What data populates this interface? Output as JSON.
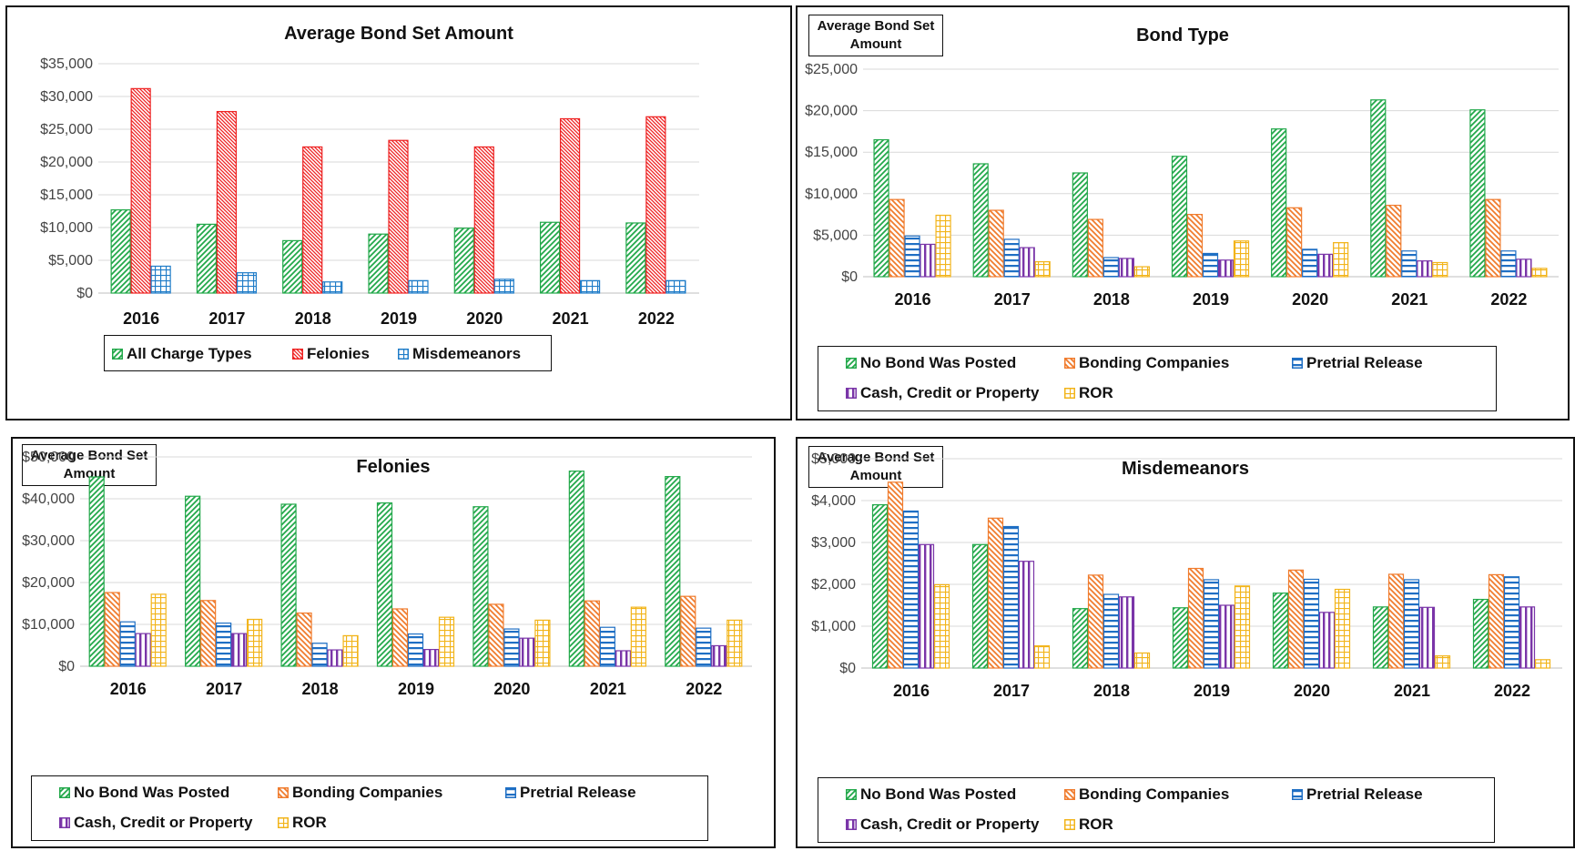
{
  "chart_data": [
    {
      "type": "bar",
      "title": "Average Bond Set Amount",
      "ylabel": "",
      "categories": [
        "2016",
        "2017",
        "2018",
        "2019",
        "2020",
        "2021",
        "2022"
      ],
      "ylim": [
        0,
        35000
      ],
      "yticks": [
        "$0",
        "$5,000",
        "$10,000",
        "$15,000",
        "$20,000",
        "$25,000",
        "$30,000",
        "$35,000"
      ],
      "legend_position": "bottom",
      "grid": true,
      "series": [
        {
          "name": "All Charge Types",
          "color": "#22a84a",
          "pattern": "diag-right",
          "values": [
            12700,
            10500,
            8000,
            9000,
            9900,
            10800,
            10700
          ]
        },
        {
          "name": "Felonies",
          "color": "#ee2222",
          "pattern": "diag-left-fine",
          "values": [
            31200,
            27700,
            22300,
            23300,
            22300,
            26600,
            26900
          ]
        },
        {
          "name": "Misdemeanors",
          "color": "#1f7cc8",
          "pattern": "grid",
          "values": [
            4100,
            3100,
            1700,
            1900,
            2100,
            1900,
            1900
          ]
        }
      ]
    },
    {
      "type": "bar",
      "title": "Bond Type",
      "ylabel": "Average Bond Set Amount",
      "categories": [
        "2016",
        "2017",
        "2018",
        "2019",
        "2020",
        "2021",
        "2022"
      ],
      "ylim": [
        0,
        25000
      ],
      "yticks": [
        "$0",
        "$5,000",
        "$10,000",
        "$15,000",
        "$20,000",
        "$25,000"
      ],
      "legend_position": "bottom",
      "grid": true,
      "series": [
        {
          "name": "No Bond Was Posted",
          "color": "#22a84a",
          "pattern": "diag-right",
          "values": [
            16500,
            13600,
            12500,
            14500,
            17800,
            21300,
            20100
          ]
        },
        {
          "name": "Bonding Companies",
          "color": "#f07c2e",
          "pattern": "diag-left",
          "values": [
            9300,
            8000,
            6900,
            7500,
            8300,
            8600,
            9300
          ]
        },
        {
          "name": "Pretrial Release",
          "color": "#1f6fc4",
          "pattern": "horizontal",
          "values": [
            4900,
            4500,
            2300,
            2800,
            3300,
            3100,
            3100
          ]
        },
        {
          "name": "Cash, Credit or Property",
          "color": "#7a35a8",
          "pattern": "vertical",
          "values": [
            3900,
            3500,
            2200,
            2000,
            2700,
            1900,
            2100
          ]
        },
        {
          "name": "ROR",
          "color": "#f2b41a",
          "pattern": "grid",
          "values": [
            7400,
            1800,
            1200,
            4300,
            4100,
            1700,
            1000
          ]
        }
      ]
    },
    {
      "type": "bar",
      "title": "Felonies",
      "ylabel": "Average Bond Set Amount",
      "categories": [
        "2016",
        "2017",
        "2018",
        "2019",
        "2020",
        "2021",
        "2022"
      ],
      "ylim": [
        0,
        50000
      ],
      "yticks": [
        "$0",
        "$10,000",
        "$20,000",
        "$30,000",
        "$40,000",
        "$50,000"
      ],
      "legend_position": "bottom",
      "grid": true,
      "series": [
        {
          "name": "No Bond Was Posted",
          "color": "#22a84a",
          "pattern": "diag-right",
          "values": [
            45200,
            40600,
            38700,
            39000,
            38100,
            46600,
            45300
          ]
        },
        {
          "name": "Bonding Companies",
          "color": "#f07c2e",
          "pattern": "diag-left",
          "values": [
            17600,
            15700,
            12700,
            13700,
            14800,
            15600,
            16700
          ]
        },
        {
          "name": "Pretrial Release",
          "color": "#1f6fc4",
          "pattern": "horizontal",
          "values": [
            10600,
            10300,
            5500,
            7700,
            8900,
            9300,
            9100
          ]
        },
        {
          "name": "Cash, Credit or Property",
          "color": "#7a35a8",
          "pattern": "vertical",
          "values": [
            7800,
            7800,
            3900,
            4000,
            6700,
            3700,
            4900
          ]
        },
        {
          "name": "ROR",
          "color": "#f2b41a",
          "pattern": "grid",
          "values": [
            17200,
            11200,
            7300,
            11700,
            11000,
            14100,
            11000
          ]
        }
      ]
    },
    {
      "type": "bar",
      "title": "Misdemeanors",
      "ylabel": "Average Bond Set Amount",
      "categories": [
        "2016",
        "2017",
        "2018",
        "2019",
        "2020",
        "2021",
        "2022"
      ],
      "ylim": [
        0,
        5000
      ],
      "yticks": [
        "$0",
        "$1,000",
        "$2,000",
        "$3,000",
        "$4,000",
        "$5,000"
      ],
      "legend_position": "bottom",
      "grid": true,
      "series": [
        {
          "name": "No Bond Was Posted",
          "color": "#22a84a",
          "pattern": "diag-right",
          "values": [
            3900,
            2950,
            1420,
            1440,
            1790,
            1460,
            1640
          ]
        },
        {
          "name": "Bonding Companies",
          "color": "#f07c2e",
          "pattern": "diag-left",
          "values": [
            4440,
            3580,
            2220,
            2380,
            2340,
            2240,
            2230
          ]
        },
        {
          "name": "Pretrial Release",
          "color": "#1f6fc4",
          "pattern": "horizontal",
          "values": [
            3750,
            3380,
            1760,
            2110,
            2120,
            2110,
            2180
          ]
        },
        {
          "name": "Cash, Credit or Property",
          "color": "#7a35a8",
          "pattern": "vertical",
          "values": [
            2950,
            2550,
            1700,
            1500,
            1330,
            1450,
            1460
          ]
        },
        {
          "name": "ROR",
          "color": "#f2b41a",
          "pattern": "grid",
          "values": [
            1990,
            530,
            360,
            1960,
            1880,
            290,
            200
          ]
        }
      ]
    }
  ]
}
